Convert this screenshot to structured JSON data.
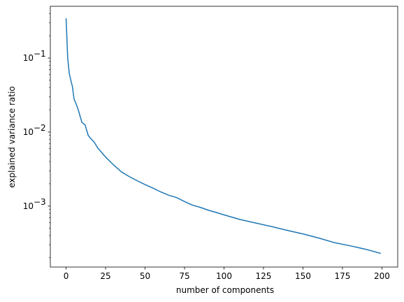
{
  "chart_data": {
    "type": "line",
    "title": "",
    "xlabel": "number of components",
    "ylabel": "explained variance ratio",
    "yscale": "log",
    "xlim": [
      -10,
      210
    ],
    "ylim": [
      0.00015,
      0.5
    ],
    "grid": false,
    "legend": "none",
    "x_ticks": [
      0,
      25,
      50,
      75,
      100,
      125,
      150,
      175,
      200
    ],
    "x_tick_labels": [
      "0",
      "25",
      "50",
      "75",
      "100",
      "125",
      "150",
      "175",
      "200"
    ],
    "y_major_ticks": [
      0.001,
      0.01,
      0.1
    ],
    "y_tick_labels": [
      "10",
      "10",
      "10"
    ],
    "y_tick_exponents": [
      "−3",
      "−2",
      "−1"
    ],
    "series": [
      {
        "color": "#1f77b4",
        "x": [
          0,
          1,
          2,
          3,
          4,
          5,
          6,
          7,
          8,
          9,
          10,
          12,
          14,
          16,
          18,
          20,
          25,
          30,
          35,
          40,
          45,
          50,
          55,
          60,
          65,
          70,
          75,
          80,
          85,
          90,
          95,
          100,
          110,
          120,
          130,
          140,
          150,
          160,
          170,
          180,
          190,
          199
        ],
        "y": [
          0.34,
          0.1,
          0.062,
          0.05,
          0.041,
          0.028,
          0.025,
          0.022,
          0.019,
          0.016,
          0.0135,
          0.0125,
          0.009,
          0.008,
          0.0072,
          0.0061,
          0.0046,
          0.0036,
          0.0029,
          0.0025,
          0.0022,
          0.00195,
          0.00175,
          0.00155,
          0.0014,
          0.0013,
          0.00115,
          0.00103,
          0.00096,
          0.00088,
          0.00082,
          0.00076,
          0.00066,
          0.00059,
          0.00053,
          0.00047,
          0.00042,
          0.00037,
          0.00032,
          0.00029,
          0.00026,
          0.00023
        ]
      }
    ]
  }
}
